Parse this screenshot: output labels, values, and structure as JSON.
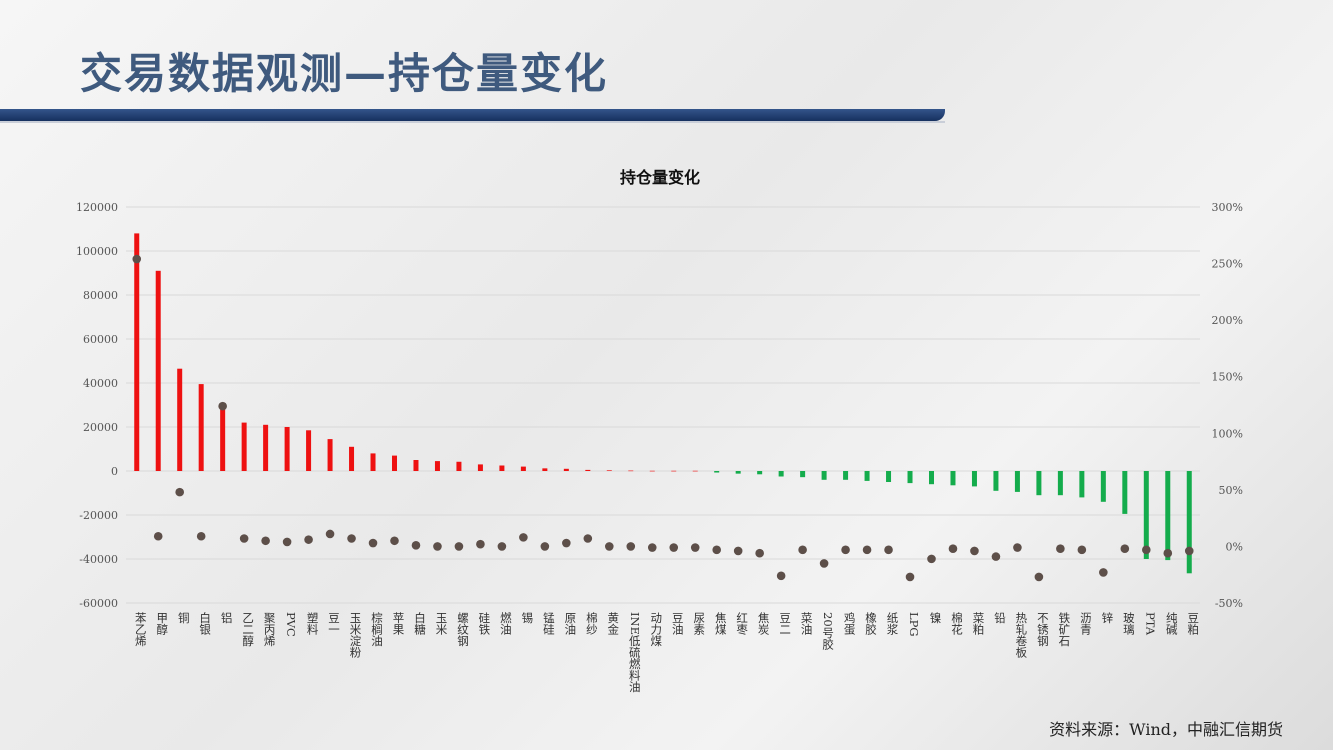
{
  "slide": {
    "title": "交易数据观测—持仓量变化",
    "source": "资料来源：Wind，中融汇信期货"
  },
  "colors": {
    "positive": "#ee1111",
    "negative": "#14ac4c",
    "dot": "#5d4f49",
    "header_bar": "#1f3d73",
    "title": "#3f5a7e"
  },
  "chart_data": {
    "type": "bar",
    "title": "持仓量变化",
    "xlabel": "",
    "ylabel": "",
    "ylim": [
      -60000,
      120000
    ],
    "y2lim": [
      -0.5,
      3.0
    ],
    "yticks": [
      "120000",
      "100000",
      "80000",
      "60000",
      "40000",
      "20000",
      "0",
      "-20000",
      "-40000",
      "-60000"
    ],
    "y2ticks": [
      "300%",
      "250%",
      "200%",
      "150%",
      "100%",
      "50%",
      "0%",
      "-50%"
    ],
    "grid": true,
    "legend": "none",
    "categories": [
      "苯乙烯",
      "甲醇",
      "铜",
      "白银",
      "铝",
      "乙二醇",
      "聚丙烯",
      "PVC",
      "塑料",
      "豆一",
      "玉米淀粉",
      "棕榈油",
      "苹果",
      "白糖",
      "玉米",
      "螺纹钢",
      "硅铁",
      "燃油",
      "锡",
      "锰硅",
      "原油",
      "棉纱",
      "黄金",
      "INE低硫燃料油",
      "动力煤",
      "豆油",
      "尿素",
      "焦煤",
      "红枣",
      "焦炭",
      "豆二",
      "菜油",
      "20号胶",
      "鸡蛋",
      "橡胶",
      "纸浆",
      "LPG",
      "镍",
      "棉花",
      "菜粕",
      "铅",
      "热轧卷板",
      "不锈钢",
      "铁矿石",
      "沥青",
      "锌",
      "玻璃",
      "PTA",
      "纯碱",
      "豆粕"
    ],
    "series": [
      {
        "axis": "left",
        "type": "bar",
        "values": [
          108000,
          91000,
          46500,
          39500,
          31000,
          22000,
          21000,
          20000,
          18500,
          14500,
          11000,
          8000,
          7000,
          5000,
          4500,
          4200,
          3000,
          2500,
          2000,
          1200,
          1000,
          500,
          300,
          200,
          100,
          100,
          100,
          -700,
          -1200,
          -1500,
          -2500,
          -2800,
          -4000,
          -4000,
          -4500,
          -5000,
          -5500,
          -6000,
          -6500,
          -7000,
          -9000,
          -9500,
          -11000,
          -11000,
          -12000,
          -14000,
          -19500,
          -40000,
          -40500,
          -46500
        ]
      },
      {
        "axis": "right",
        "type": "scatter",
        "values": [
          2.54,
          0.09,
          0.48,
          0.09,
          1.24,
          0.07,
          0.05,
          0.04,
          0.06,
          0.11,
          0.07,
          0.03,
          0.05,
          0.01,
          0.0,
          0.0,
          0.02,
          0.0,
          0.08,
          0.0,
          0.03,
          0.07,
          0.0,
          0.0,
          -0.01,
          -0.01,
          -0.01,
          -0.03,
          -0.04,
          -0.06,
          -0.26,
          -0.03,
          -0.15,
          -0.03,
          -0.03,
          -0.03,
          -0.27,
          -0.11,
          -0.02,
          -0.04,
          -0.09,
          -0.01,
          -0.27,
          -0.02,
          -0.03,
          -0.23,
          -0.02,
          -0.03,
          -0.06,
          -0.04
        ]
      }
    ]
  }
}
